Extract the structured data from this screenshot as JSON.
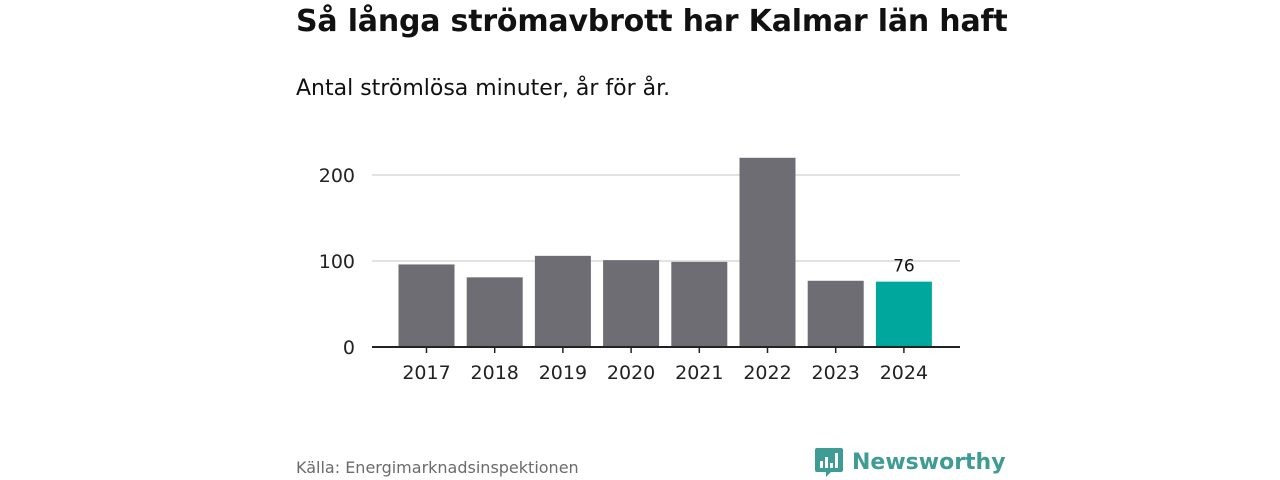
{
  "title": "Så långa strömavbrott har Kalmar län haft",
  "subtitle": "Antal strömlösa minuter, år för år.",
  "source": "Källa: Energimarknadsinspektionen",
  "brand": {
    "name": "Newsworthy",
    "icon": "newsworthy-logo-icon",
    "color": "#3f9c95"
  },
  "colors": {
    "bar": "#6e6d73",
    "highlight": "#00a79d",
    "grid": "#d9d9d9",
    "axis": "#222222",
    "text": "#222222"
  },
  "chart_data": {
    "type": "bar",
    "title": "Så långa strömavbrott har Kalmar län haft",
    "subtitle": "Antal strömlösa minuter, år för år.",
    "categories": [
      "2017",
      "2018",
      "2019",
      "2020",
      "2021",
      "2022",
      "2023",
      "2024"
    ],
    "values": [
      96,
      81,
      106,
      101,
      99,
      220,
      77,
      76
    ],
    "highlight_index": 7,
    "data_labels": [
      {
        "category": "2024",
        "text": "76"
      }
    ],
    "yticks": [
      0,
      100,
      200
    ],
    "ylim": [
      0,
      220
    ],
    "grid": true,
    "legend": "none"
  }
}
